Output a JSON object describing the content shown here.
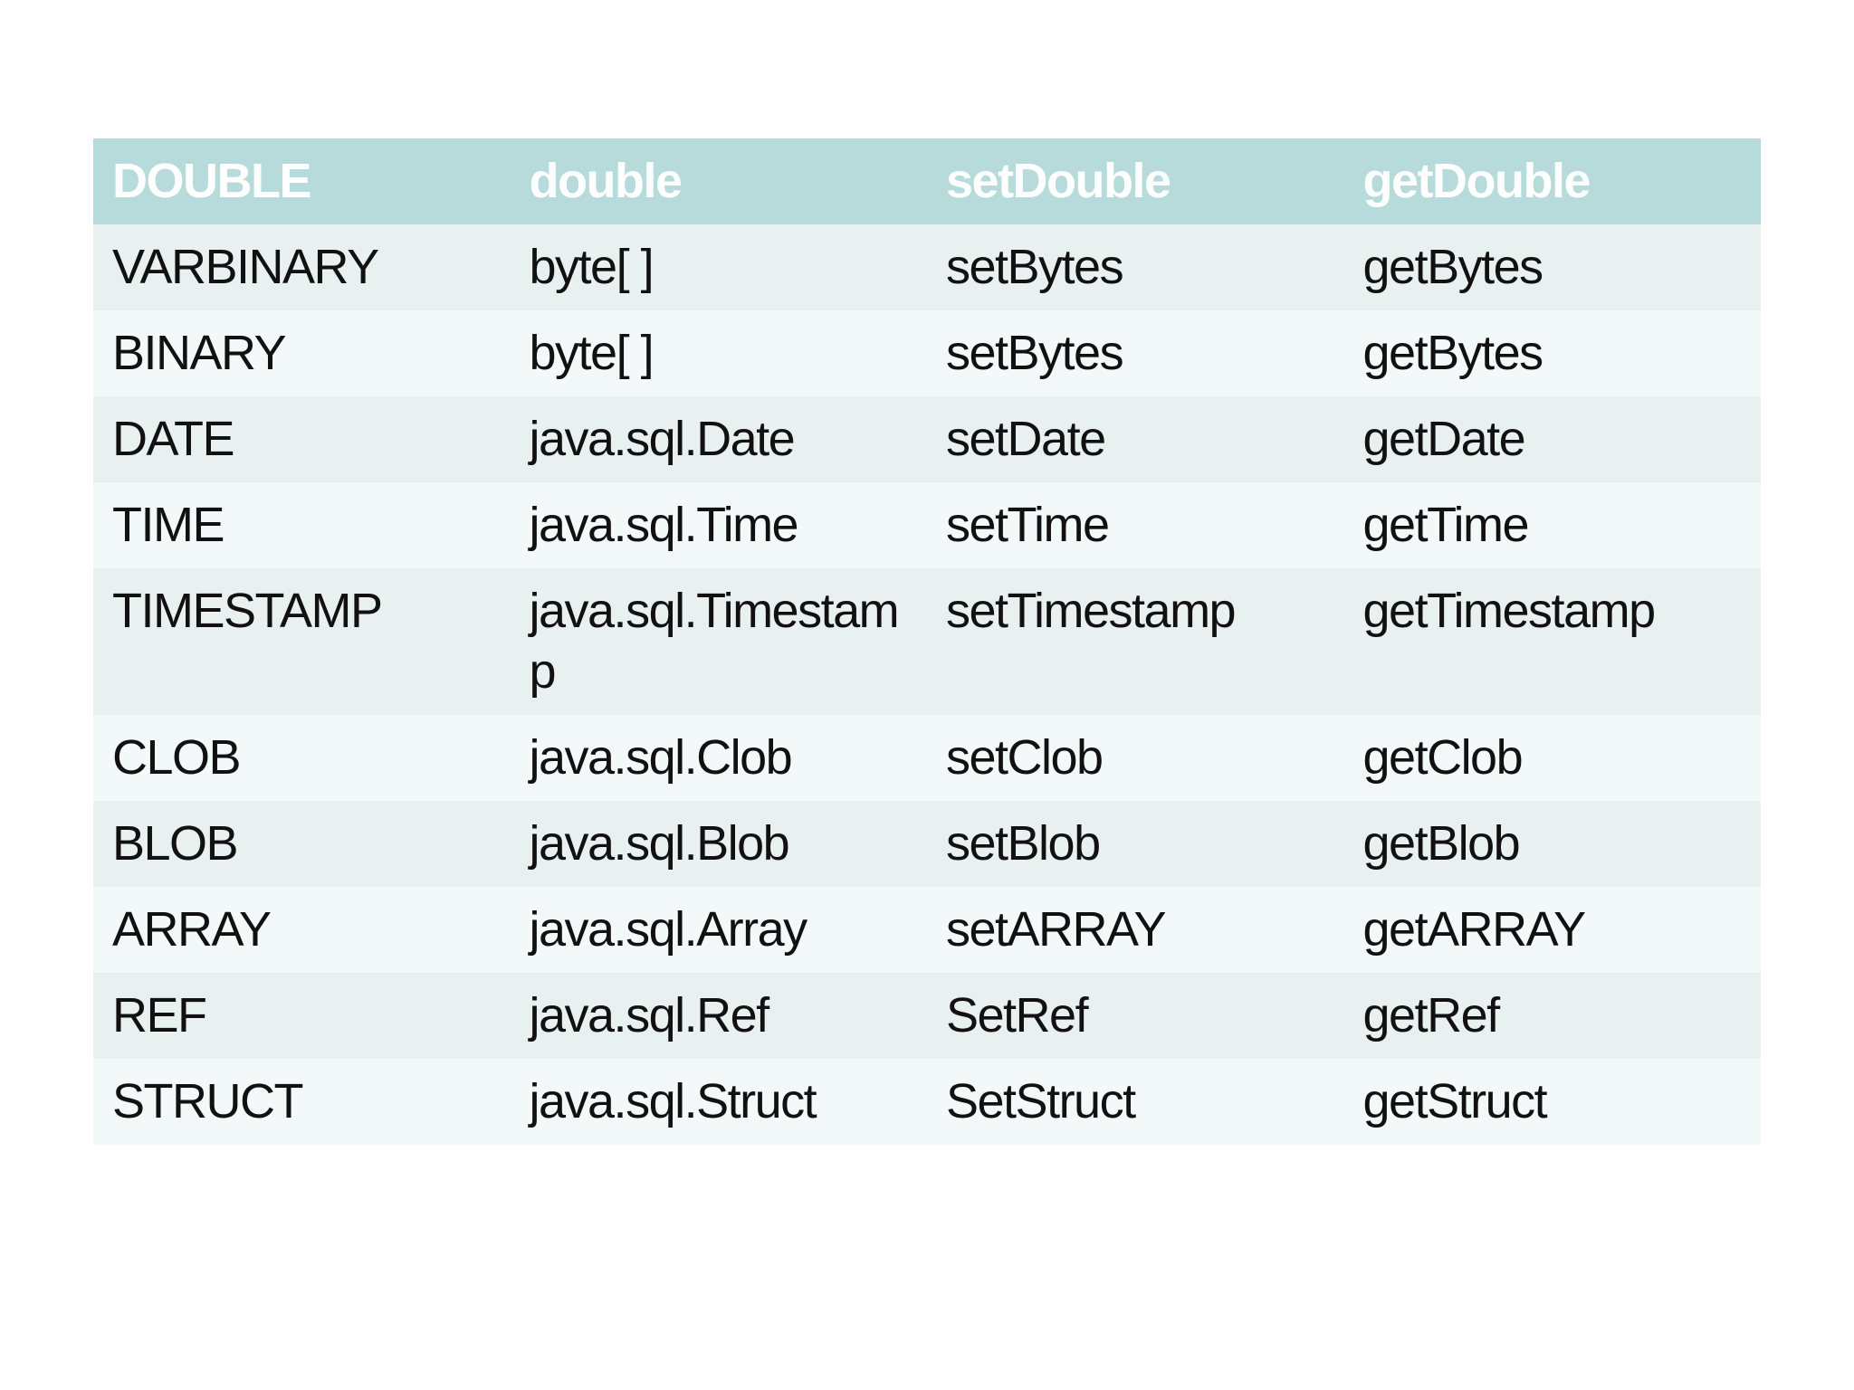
{
  "table": {
    "header": {
      "cells": [
        "DOUBLE",
        "double",
        "setDouble",
        "getDouble"
      ]
    },
    "rows": [
      {
        "cells": [
          "VARBINARY",
          "byte[ ]",
          "setBytes",
          "getBytes"
        ]
      },
      {
        "cells": [
          "BINARY",
          "byte[ ]",
          "setBytes",
          "getBytes"
        ]
      },
      {
        "cells": [
          "DATE",
          "java.sql.Date",
          "setDate",
          "getDate"
        ]
      },
      {
        "cells": [
          "TIME",
          "java.sql.Time",
          "setTime",
          "getTime"
        ]
      },
      {
        "cells": [
          "TIMESTAMP",
          "java.sql.Timestamp",
          "setTimestamp",
          "getTimestamp"
        ]
      },
      {
        "cells": [
          "CLOB",
          "java.sql.Clob",
          "setClob",
          "getClob"
        ]
      },
      {
        "cells": [
          "BLOB",
          "java.sql.Blob",
          "setBlob",
          "getBlob"
        ]
      },
      {
        "cells": [
          "ARRAY",
          "java.sql.Array",
          "setARRAY",
          "getARRAY"
        ]
      },
      {
        "cells": [
          "REF",
          "java.sql.Ref",
          "SetRef",
          "getRef"
        ]
      },
      {
        "cells": [
          "STRUCT",
          "java.sql.Struct",
          "SetStruct",
          "getStruct"
        ]
      }
    ],
    "colors": {
      "header_bg": "#b7dadb",
      "header_text": "#fdffff",
      "row_band_dark": "#e9f0f0",
      "row_band_light": "#f3f8f8",
      "cell_text": "#111111",
      "page_bg": "#ffffff"
    }
  }
}
